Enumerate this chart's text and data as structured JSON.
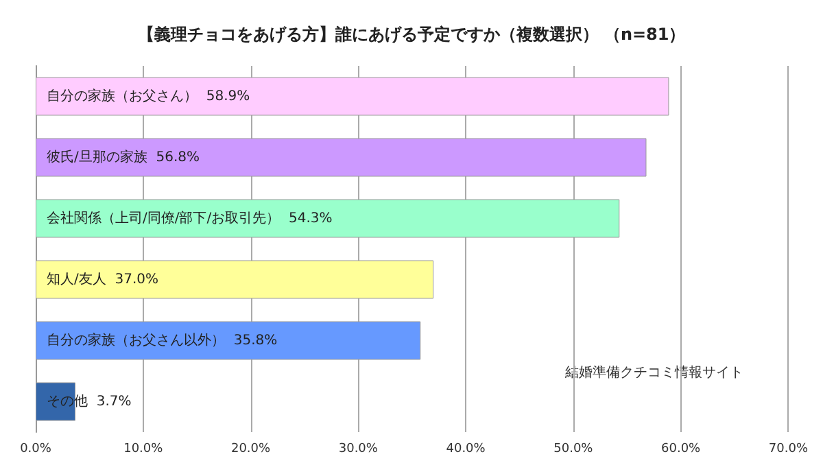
{
  "chart_data": {
    "type": "bar",
    "orientation": "horizontal",
    "title": "【義理チョコをあげる方】誰にあげる予定ですか（複数選択） （n=81）",
    "categories": [
      "自分の家族（お父さん）",
      "彼氏/旦那の家族",
      "会社関係（上司/同僚/部下/お取引先）",
      "知人/友人",
      "自分の家族（お父さん以外）",
      "その他"
    ],
    "values": [
      58.9,
      56.8,
      54.3,
      37.0,
      35.8,
      3.7
    ],
    "value_labels": [
      "58.9%",
      "56.8%",
      "54.3%",
      "37.0%",
      "35.8%",
      "3.7%"
    ],
    "colors": [
      "#ffccff",
      "#cc99ff",
      "#99ffcc",
      "#ffff99",
      "#6699ff",
      "#3366aa"
    ],
    "xlim": [
      0,
      70
    ],
    "xticks": [
      {
        "value": 0,
        "label": "0.0%"
      },
      {
        "value": 10,
        "label": "10.0%"
      },
      {
        "value": 20,
        "label": "20.0%"
      },
      {
        "value": 30,
        "label": "30.0%"
      },
      {
        "value": 40,
        "label": "40.0%"
      },
      {
        "value": 50,
        "label": "50.0%"
      },
      {
        "value": 60,
        "label": "60.0%"
      },
      {
        "value": 70,
        "label": "70.0%"
      }
    ],
    "grid": "x",
    "annotations": [
      "結婚準備クチコミ情報サイト"
    ]
  }
}
